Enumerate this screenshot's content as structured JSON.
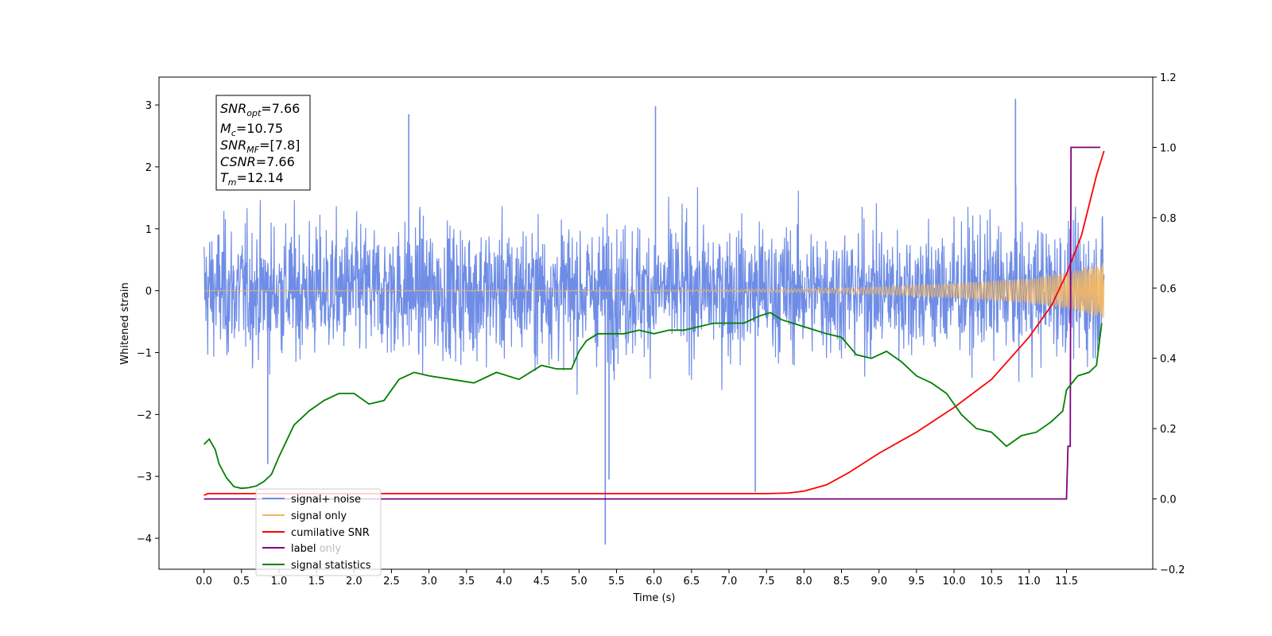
{
  "chart_data": {
    "type": "line",
    "xlabel": "Time (s)",
    "ylabel": "Whitened strain",
    "xlim": [
      -0.6,
      12.65
    ],
    "ylim": [
      -4.5,
      3.45
    ],
    "y2lim": [
      -0.2,
      1.2
    ],
    "x_ticks": [
      "0.0",
      "0.5",
      "1.0",
      "1.5",
      "2.0",
      "2.5",
      "3.0",
      "3.5",
      "4.0",
      "4.5",
      "5.0",
      "5.5",
      "6.0",
      "6.5",
      "7.0",
      "7.5",
      "8.0",
      "8.5",
      "9.0",
      "9.5",
      "10.0",
      "10.5",
      "11.0",
      "11.5"
    ],
    "y_ticks": [
      "−4",
      "−3",
      "−2",
      "−1",
      "0",
      "1",
      "2",
      "3"
    ],
    "y2_ticks": [
      "−0.2",
      "0.0",
      "0.2",
      "0.4",
      "0.6",
      "0.8",
      "1.0",
      "1.2"
    ],
    "legend_location": "lower-left",
    "grid": false,
    "annotation": [
      {
        "base": "SNR",
        "sub": "opt",
        "value": "=7.66"
      },
      {
        "base": "M",
        "sub": "c",
        "value": "=10.75"
      },
      {
        "base": "SNR",
        "sub": "MF",
        "value": "=[7.8]"
      },
      {
        "base": "CSNR",
        "sub": "",
        "value": "=7.66"
      },
      {
        "base": "T",
        "sub": "m",
        "value": "=12.14"
      }
    ],
    "series": [
      {
        "name": "signal+ noise",
        "axis": "left",
        "color": "#6f8de6",
        "description": "whitened noise, std about 0.75, t 0 to 12.0",
        "peaks": [
          [
            2.73,
            2.85
          ],
          [
            6.02,
            2.98
          ],
          [
            10.82,
            3.1
          ],
          [
            5.35,
            -4.1
          ],
          [
            7.35,
            -3.25
          ],
          [
            0.85,
            -2.8
          ],
          [
            5.4,
            -3.05
          ]
        ]
      },
      {
        "name": "signal only",
        "axis": "left",
        "color": "#f5b860",
        "envelope_x": [
          0,
          6,
          8,
          9,
          10,
          11,
          11.5,
          12.0
        ],
        "envelope": [
          0.005,
          0.01,
          0.03,
          0.06,
          0.12,
          0.2,
          0.3,
          0.45
        ]
      },
      {
        "name": "cumilative SNR",
        "axis": "right",
        "color": "#ff0000",
        "x": [
          0,
          0.05,
          7.5,
          7.8,
          8.0,
          8.3,
          8.6,
          9.0,
          9.5,
          10.0,
          10.5,
          11.0,
          11.3,
          11.5,
          11.7,
          11.9,
          12.0
        ],
        "values": [
          0.01,
          0.015,
          0.015,
          0.017,
          0.022,
          0.04,
          0.075,
          0.13,
          0.19,
          0.26,
          0.34,
          0.46,
          0.55,
          0.64,
          0.75,
          0.92,
          0.99
        ]
      },
      {
        "name": "label",
        "axis": "right",
        "color": "#800080",
        "x": [
          0,
          11.5,
          11.52,
          11.55,
          11.56,
          11.95
        ],
        "values": [
          0.0,
          0.0,
          0.15,
          0.15,
          1.0,
          1.0
        ]
      },
      {
        "name": "label only",
        "axis": "right",
        "color": "#aaaaaa",
        "values": []
      },
      {
        "name": "signal statistics",
        "axis": "right",
        "color": "#008000",
        "x": [
          0,
          0.07,
          0.15,
          0.2,
          0.3,
          0.4,
          0.5,
          0.6,
          0.7,
          0.8,
          0.9,
          1.0,
          1.2,
          1.4,
          1.6,
          1.8,
          2.0,
          2.2,
          2.4,
          2.6,
          2.8,
          3.0,
          3.3,
          3.6,
          3.9,
          4.2,
          4.5,
          4.7,
          4.9,
          5.0,
          5.1,
          5.25,
          5.4,
          5.6,
          5.8,
          6.0,
          6.2,
          6.4,
          6.6,
          6.8,
          7.0,
          7.2,
          7.4,
          7.55,
          7.7,
          8.0,
          8.3,
          8.5,
          8.7,
          8.9,
          9.1,
          9.3,
          9.5,
          9.7,
          9.9,
          10.1,
          10.3,
          10.5,
          10.7,
          10.9,
          11.1,
          11.3,
          11.45,
          11.5,
          11.65,
          11.8,
          11.9,
          11.97
        ],
        "values": [
          0.155,
          0.17,
          0.14,
          0.1,
          0.06,
          0.035,
          0.03,
          0.032,
          0.037,
          0.05,
          0.07,
          0.12,
          0.21,
          0.25,
          0.28,
          0.3,
          0.3,
          0.27,
          0.28,
          0.34,
          0.36,
          0.35,
          0.34,
          0.33,
          0.36,
          0.34,
          0.38,
          0.37,
          0.37,
          0.42,
          0.45,
          0.47,
          0.47,
          0.47,
          0.48,
          0.47,
          0.48,
          0.48,
          0.49,
          0.5,
          0.5,
          0.5,
          0.52,
          0.53,
          0.51,
          0.49,
          0.47,
          0.46,
          0.41,
          0.4,
          0.42,
          0.39,
          0.35,
          0.33,
          0.3,
          0.24,
          0.2,
          0.19,
          0.15,
          0.18,
          0.19,
          0.22,
          0.25,
          0.31,
          0.35,
          0.36,
          0.38,
          0.5
        ]
      }
    ]
  }
}
